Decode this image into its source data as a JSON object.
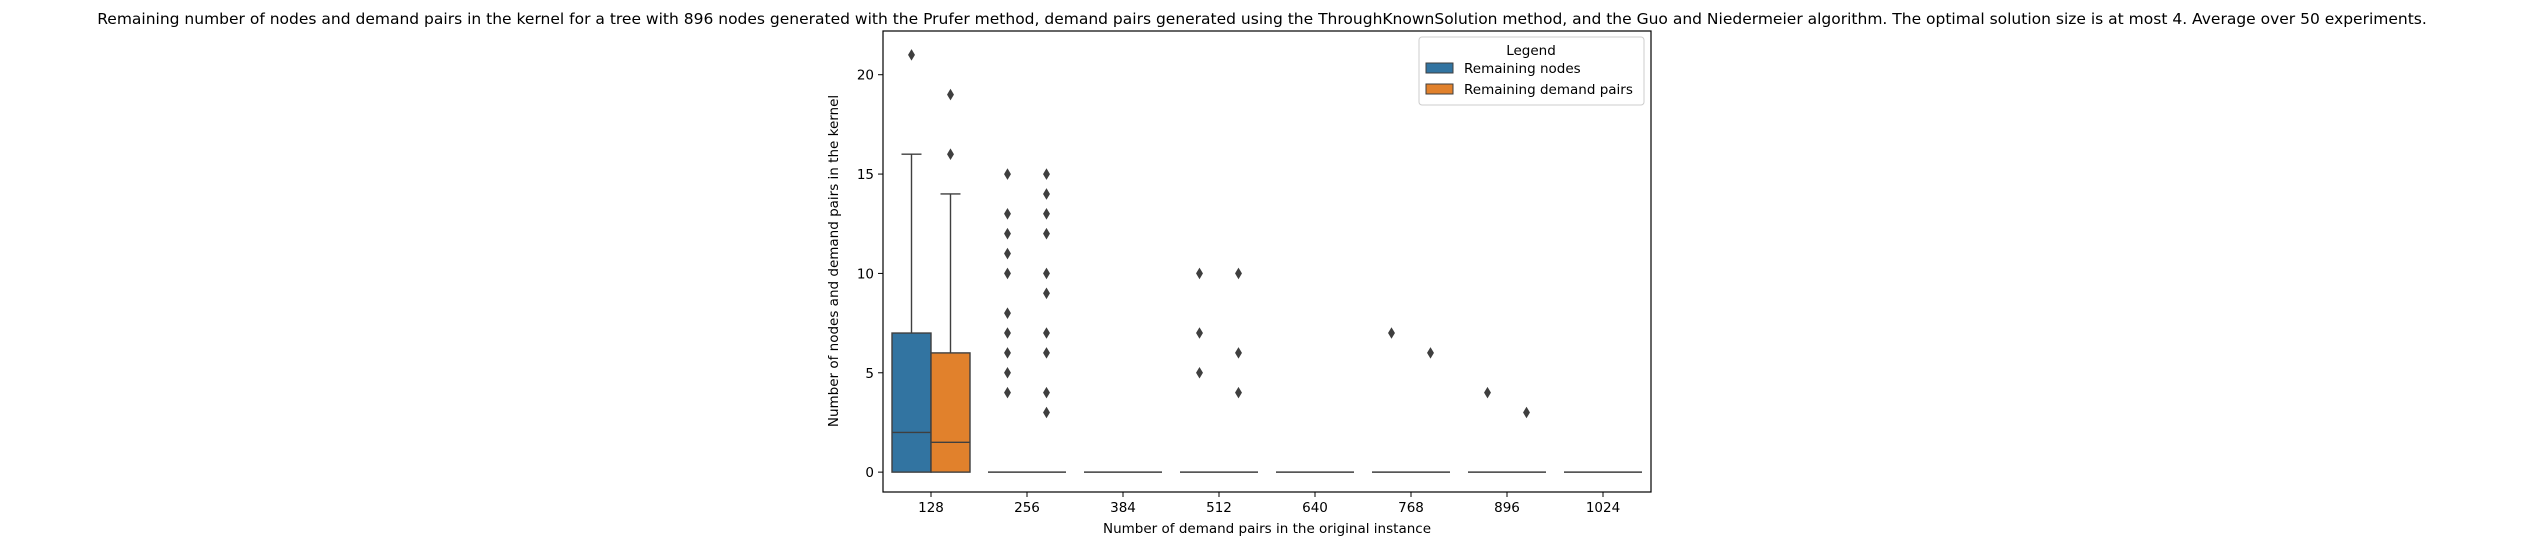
{
  "chart_data": {
    "type": "box",
    "title": "Remaining number of nodes and demand pairs in the kernel for a tree with 896 nodes generated with the Prufer method, demand pairs generated using the ThroughKnownSolution method, and the Guo and Niedermeier algorithm. The optimal solution size is at most 4. Average over 50 experiments.",
    "xlabel": "Number of demand pairs in the original instance",
    "ylabel": "Number of nodes and demand pairs in the kernel",
    "categories": [
      "128",
      "256",
      "384",
      "512",
      "640",
      "768",
      "896",
      "1024"
    ],
    "ylim": [
      -1,
      22.2
    ],
    "yticks": [
      0,
      5,
      10,
      15,
      20
    ],
    "legend": {
      "title": "Legend",
      "position": "top-right"
    },
    "series": [
      {
        "name": "Remaining nodes",
        "color": "#3274a1",
        "boxes": [
          {
            "min": 0,
            "q1": 0,
            "median": 2,
            "q3": 7,
            "max": 16,
            "outliers": [
              21
            ]
          },
          {
            "min": 0,
            "q1": 0,
            "median": 0,
            "q3": 0,
            "max": 0,
            "outliers": [
              4,
              5,
              6,
              7,
              8,
              10,
              11,
              12,
              13,
              15
            ]
          },
          {
            "min": 0,
            "q1": 0,
            "median": 0,
            "q3": 0,
            "max": 0,
            "outliers": []
          },
          {
            "min": 0,
            "q1": 0,
            "median": 0,
            "q3": 0,
            "max": 0,
            "outliers": [
              5,
              7,
              10
            ]
          },
          {
            "min": 0,
            "q1": 0,
            "median": 0,
            "q3": 0,
            "max": 0,
            "outliers": []
          },
          {
            "min": 0,
            "q1": 0,
            "median": 0,
            "q3": 0,
            "max": 0,
            "outliers": [
              7
            ]
          },
          {
            "min": 0,
            "q1": 0,
            "median": 0,
            "q3": 0,
            "max": 0,
            "outliers": [
              4
            ]
          },
          {
            "min": 0,
            "q1": 0,
            "median": 0,
            "q3": 0,
            "max": 0,
            "outliers": []
          }
        ]
      },
      {
        "name": "Remaining demand pairs",
        "color": "#e1812c",
        "boxes": [
          {
            "min": 0,
            "q1": 0,
            "median": 1.5,
            "q3": 6,
            "max": 14,
            "outliers": [
              16,
              19
            ]
          },
          {
            "min": 0,
            "q1": 0,
            "median": 0,
            "q3": 0,
            "max": 0,
            "outliers": [
              3,
              4,
              6,
              7,
              9,
              10,
              12,
              13,
              14,
              15
            ]
          },
          {
            "min": 0,
            "q1": 0,
            "median": 0,
            "q3": 0,
            "max": 0,
            "outliers": []
          },
          {
            "min": 0,
            "q1": 0,
            "median": 0,
            "q3": 0,
            "max": 0,
            "outliers": [
              4,
              6,
              10
            ]
          },
          {
            "min": 0,
            "q1": 0,
            "median": 0,
            "q3": 0,
            "max": 0,
            "outliers": []
          },
          {
            "min": 0,
            "q1": 0,
            "median": 0,
            "q3": 0,
            "max": 0,
            "outliers": [
              6
            ]
          },
          {
            "min": 0,
            "q1": 0,
            "median": 0,
            "q3": 0,
            "max": 0,
            "outliers": [
              3
            ]
          },
          {
            "min": 0,
            "q1": 0,
            "median": 0,
            "q3": 0,
            "max": 0,
            "outliers": []
          }
        ]
      }
    ]
  }
}
